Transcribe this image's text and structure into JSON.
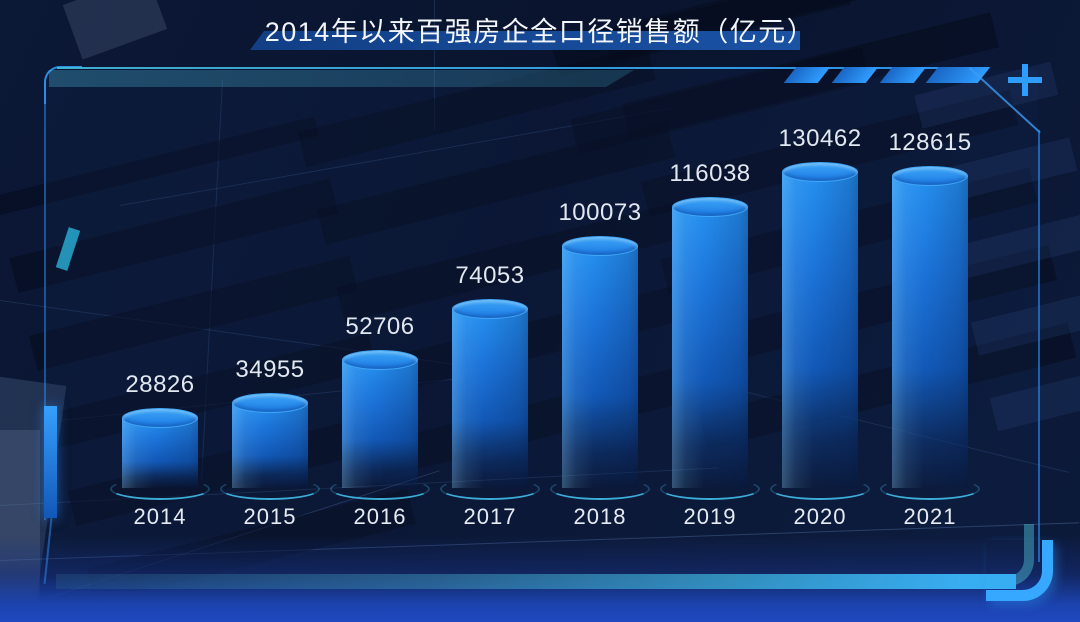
{
  "title": "2014年以来百强房企全口径销售额（亿元）",
  "icons": {
    "top_right": "plus-icon"
  },
  "colors": {
    "background": "#0a1530",
    "accent_blue": "#2f9dff",
    "accent_cyan": "#3ec6f0",
    "title_band": "#1a52a4",
    "text": "#f3f6fb"
  },
  "chart_data": {
    "type": "bar",
    "title": "2014年以来百强房企全口径销售额（亿元）",
    "categories": [
      "2014",
      "2015",
      "2016",
      "2017",
      "2018",
      "2019",
      "2020",
      "2021"
    ],
    "values": [
      28826,
      34955,
      52706,
      74053,
      100073,
      116038,
      130462,
      128615
    ],
    "unit": "亿元",
    "xlabel": "",
    "ylabel": "",
    "ylim": [
      0,
      140000
    ],
    "grid": false,
    "legend": false,
    "bar_shape": "3d-cylinder",
    "value_labels": "above-bars",
    "colors": {
      "bar_top": "#2f9bf2",
      "bar_body_top": "#2590f0",
      "bar_body_bottom": "#0c3f8e",
      "bar_rim": "#3fa6f8",
      "base_ring": "#3ec6f0",
      "value_label": "#e2e8f1",
      "axis_label": "#e6ebf3"
    }
  }
}
